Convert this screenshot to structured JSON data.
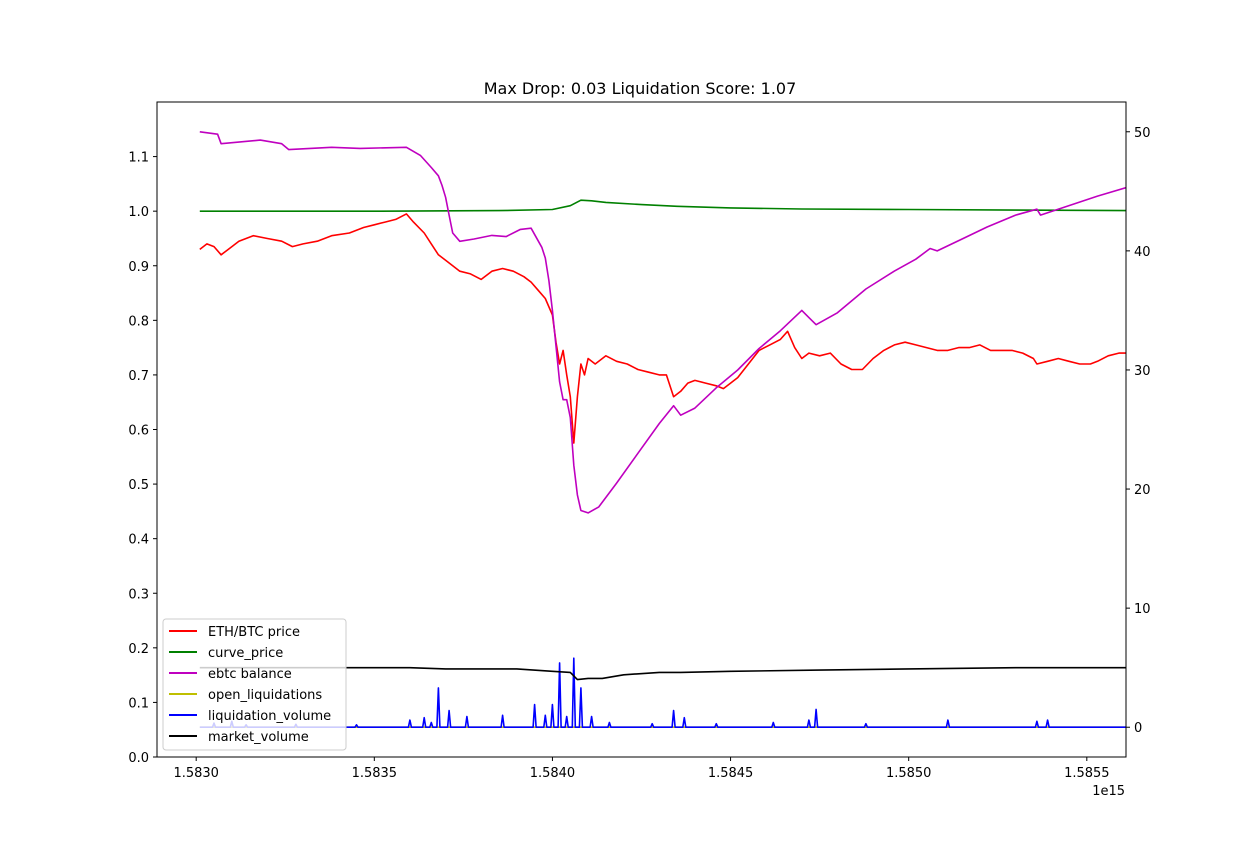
{
  "chart_data": {
    "type": "line",
    "title": "Max Drop: 0.03 Liquidation Score: 1.07",
    "x_offset_label": "1e15",
    "xlim": [
      1.58289,
      1.58561
    ],
    "ylim_left": [
      0.0,
      1.2
    ],
    "ylim_right": [
      -2.5,
      52.5
    ],
    "x_ticks": [
      {
        "value": 1.583,
        "label": "1.5830"
      },
      {
        "value": 1.5835,
        "label": "1.5835"
      },
      {
        "value": 1.584,
        "label": "1.5840"
      },
      {
        "value": 1.5845,
        "label": "1.5845"
      },
      {
        "value": 1.585,
        "label": "1.5850"
      },
      {
        "value": 1.5855,
        "label": "1.5855"
      }
    ],
    "y_ticks_left": [
      {
        "value": 0.0,
        "label": "0.0"
      },
      {
        "value": 0.1,
        "label": "0.1"
      },
      {
        "value": 0.2,
        "label": "0.2"
      },
      {
        "value": 0.3,
        "label": "0.3"
      },
      {
        "value": 0.4,
        "label": "0.4"
      },
      {
        "value": 0.5,
        "label": "0.5"
      },
      {
        "value": 0.6,
        "label": "0.6"
      },
      {
        "value": 0.7,
        "label": "0.7"
      },
      {
        "value": 0.8,
        "label": "0.8"
      },
      {
        "value": 0.9,
        "label": "0.9"
      },
      {
        "value": 1.0,
        "label": "1.0"
      },
      {
        "value": 1.1,
        "label": "1.1"
      }
    ],
    "y_ticks_right": [
      {
        "value": 0,
        "label": "0"
      },
      {
        "value": 10,
        "label": "10"
      },
      {
        "value": 20,
        "label": "20"
      },
      {
        "value": 30,
        "label": "30"
      },
      {
        "value": 40,
        "label": "40"
      },
      {
        "value": 50,
        "label": "50"
      }
    ],
    "legend_position": "lower-left",
    "series": [
      {
        "name": "ETH/BTC price",
        "color": "#ff0000",
        "axis": "left",
        "points": [
          [
            1.58301,
            0.93
          ],
          [
            1.58303,
            0.94
          ],
          [
            1.58305,
            0.935
          ],
          [
            1.58307,
            0.92
          ],
          [
            1.58309,
            0.93
          ],
          [
            1.58312,
            0.945
          ],
          [
            1.58316,
            0.955
          ],
          [
            1.5832,
            0.95
          ],
          [
            1.58324,
            0.945
          ],
          [
            1.58327,
            0.935
          ],
          [
            1.5833,
            0.94
          ],
          [
            1.58334,
            0.945
          ],
          [
            1.58338,
            0.955
          ],
          [
            1.58343,
            0.96
          ],
          [
            1.58347,
            0.97
          ],
          [
            1.5835,
            0.975
          ],
          [
            1.58353,
            0.98
          ],
          [
            1.58356,
            0.985
          ],
          [
            1.58359,
            0.995
          ],
          [
            1.58361,
            0.98
          ],
          [
            1.58364,
            0.96
          ],
          [
            1.58366,
            0.94
          ],
          [
            1.58368,
            0.92
          ],
          [
            1.5837,
            0.91
          ],
          [
            1.58372,
            0.9
          ],
          [
            1.58374,
            0.89
          ],
          [
            1.58377,
            0.885
          ],
          [
            1.5838,
            0.875
          ],
          [
            1.58383,
            0.89
          ],
          [
            1.58386,
            0.895
          ],
          [
            1.58389,
            0.89
          ],
          [
            1.58392,
            0.88
          ],
          [
            1.58394,
            0.87
          ],
          [
            1.58396,
            0.855
          ],
          [
            1.58398,
            0.84
          ],
          [
            1.584,
            0.81
          ],
          [
            1.58401,
            0.76
          ],
          [
            1.58402,
            0.72
          ],
          [
            1.58403,
            0.745
          ],
          [
            1.58404,
            0.7
          ],
          [
            1.58405,
            0.66
          ],
          [
            1.58406,
            0.575
          ],
          [
            1.58407,
            0.66
          ],
          [
            1.58408,
            0.72
          ],
          [
            1.58409,
            0.7
          ],
          [
            1.5841,
            0.73
          ],
          [
            1.58412,
            0.72
          ],
          [
            1.58415,
            0.735
          ],
          [
            1.58418,
            0.725
          ],
          [
            1.58421,
            0.72
          ],
          [
            1.58424,
            0.71
          ],
          [
            1.58427,
            0.705
          ],
          [
            1.5843,
            0.7
          ],
          [
            1.58432,
            0.7
          ],
          [
            1.58434,
            0.66
          ],
          [
            1.58436,
            0.67
          ],
          [
            1.58438,
            0.685
          ],
          [
            1.5844,
            0.69
          ],
          [
            1.58443,
            0.685
          ],
          [
            1.58446,
            0.68
          ],
          [
            1.58448,
            0.675
          ],
          [
            1.5845,
            0.685
          ],
          [
            1.58452,
            0.695
          ],
          [
            1.58455,
            0.72
          ],
          [
            1.58458,
            0.745
          ],
          [
            1.58461,
            0.755
          ],
          [
            1.58464,
            0.765
          ],
          [
            1.58466,
            0.78
          ],
          [
            1.58468,
            0.75
          ],
          [
            1.5847,
            0.73
          ],
          [
            1.58472,
            0.74
          ],
          [
            1.58475,
            0.735
          ],
          [
            1.58478,
            0.74
          ],
          [
            1.58481,
            0.72
          ],
          [
            1.58484,
            0.71
          ],
          [
            1.58487,
            0.71
          ],
          [
            1.5849,
            0.73
          ],
          [
            1.58493,
            0.745
          ],
          [
            1.58496,
            0.755
          ],
          [
            1.58499,
            0.76
          ],
          [
            1.58502,
            0.755
          ],
          [
            1.58505,
            0.75
          ],
          [
            1.58508,
            0.745
          ],
          [
            1.58511,
            0.745
          ],
          [
            1.58514,
            0.75
          ],
          [
            1.58517,
            0.75
          ],
          [
            1.5852,
            0.755
          ],
          [
            1.58523,
            0.745
          ],
          [
            1.58526,
            0.745
          ],
          [
            1.58529,
            0.745
          ],
          [
            1.58532,
            0.74
          ],
          [
            1.58535,
            0.73
          ],
          [
            1.58536,
            0.72
          ],
          [
            1.58539,
            0.725
          ],
          [
            1.58542,
            0.73
          ],
          [
            1.58545,
            0.725
          ],
          [
            1.58548,
            0.72
          ],
          [
            1.58551,
            0.72
          ],
          [
            1.58553,
            0.725
          ],
          [
            1.58556,
            0.735
          ],
          [
            1.58559,
            0.74
          ],
          [
            1.58561,
            0.74
          ]
        ]
      },
      {
        "name": "curve_price",
        "color": "#008000",
        "axis": "left",
        "points": [
          [
            1.58301,
            1.0
          ],
          [
            1.5835,
            1.0
          ],
          [
            1.58385,
            1.001
          ],
          [
            1.584,
            1.003
          ],
          [
            1.58405,
            1.01
          ],
          [
            1.58408,
            1.02
          ],
          [
            1.58411,
            1.019
          ],
          [
            1.58415,
            1.016
          ],
          [
            1.58425,
            1.012
          ],
          [
            1.58435,
            1.009
          ],
          [
            1.5845,
            1.006
          ],
          [
            1.5847,
            1.004
          ],
          [
            1.585,
            1.003
          ],
          [
            1.5853,
            1.002
          ],
          [
            1.58561,
            1.001
          ]
        ]
      },
      {
        "name": "ebtc balance",
        "color": "#bf00bf",
        "axis": "right",
        "points": [
          [
            1.58301,
            50.0
          ],
          [
            1.58306,
            49.8
          ],
          [
            1.58307,
            49.0
          ],
          [
            1.58318,
            49.3
          ],
          [
            1.58324,
            49.0
          ],
          [
            1.58326,
            48.5
          ],
          [
            1.58338,
            48.7
          ],
          [
            1.58346,
            48.6
          ],
          [
            1.58359,
            48.7
          ],
          [
            1.58363,
            48.0
          ],
          [
            1.58366,
            47.0
          ],
          [
            1.58368,
            46.3
          ],
          [
            1.58369,
            45.5
          ],
          [
            1.5837,
            44.5
          ],
          [
            1.58371,
            43.0
          ],
          [
            1.58372,
            41.5
          ],
          [
            1.58374,
            40.8
          ],
          [
            1.58378,
            41.0
          ],
          [
            1.58383,
            41.3
          ],
          [
            1.58387,
            41.2
          ],
          [
            1.58391,
            41.8
          ],
          [
            1.58394,
            41.9
          ],
          [
            1.58397,
            40.3
          ],
          [
            1.58398,
            39.4
          ],
          [
            1.58399,
            37.5
          ],
          [
            1.584,
            35.0
          ],
          [
            1.58401,
            32.0
          ],
          [
            1.58402,
            29.0
          ],
          [
            1.58403,
            27.5
          ],
          [
            1.58404,
            27.5
          ],
          [
            1.58405,
            26.0
          ],
          [
            1.58406,
            22.0
          ],
          [
            1.58407,
            19.5
          ],
          [
            1.58408,
            18.2
          ],
          [
            1.5841,
            18.0
          ],
          [
            1.58413,
            18.5
          ],
          [
            1.58418,
            20.5
          ],
          [
            1.58424,
            23.0
          ],
          [
            1.5843,
            25.5
          ],
          [
            1.58434,
            27.0
          ],
          [
            1.58436,
            26.2
          ],
          [
            1.5844,
            26.8
          ],
          [
            1.58446,
            28.5
          ],
          [
            1.58452,
            30.0
          ],
          [
            1.58458,
            31.8
          ],
          [
            1.58464,
            33.3
          ],
          [
            1.5847,
            35.0
          ],
          [
            1.58472,
            34.4
          ],
          [
            1.58474,
            33.8
          ],
          [
            1.5848,
            34.8
          ],
          [
            1.58488,
            36.8
          ],
          [
            1.58496,
            38.3
          ],
          [
            1.58502,
            39.3
          ],
          [
            1.58506,
            40.2
          ],
          [
            1.58508,
            40.0
          ],
          [
            1.58515,
            41.0
          ],
          [
            1.58522,
            42.0
          ],
          [
            1.5853,
            43.0
          ],
          [
            1.58536,
            43.5
          ],
          [
            1.58537,
            43.0
          ],
          [
            1.58545,
            43.8
          ],
          [
            1.58553,
            44.6
          ],
          [
            1.58561,
            45.3
          ]
        ]
      },
      {
        "name": "open_liquidations",
        "color": "#bfbf00",
        "axis": "right",
        "points": [
          [
            1.58301,
            0
          ],
          [
            1.58561,
            0
          ]
        ]
      },
      {
        "name": "liquidation_volume",
        "color": "#0000ff",
        "axis": "right",
        "baseline": 0.0,
        "spikes": [
          [
            1.58305,
            0.35
          ],
          [
            1.5831,
            0.5
          ],
          [
            1.58314,
            0.2
          ],
          [
            1.58328,
            0.25
          ],
          [
            1.58345,
            0.2
          ],
          [
            1.5836,
            0.6
          ],
          [
            1.58364,
            0.8
          ],
          [
            1.58366,
            0.4
          ],
          [
            1.58368,
            3.3
          ],
          [
            1.58371,
            1.4
          ],
          [
            1.58376,
            0.9
          ],
          [
            1.58386,
            1.0
          ],
          [
            1.58395,
            1.9
          ],
          [
            1.58398,
            1.0
          ],
          [
            1.584,
            1.9
          ],
          [
            1.58402,
            5.4
          ],
          [
            1.58404,
            0.9
          ],
          [
            1.58406,
            5.8
          ],
          [
            1.58408,
            3.3
          ],
          [
            1.58411,
            0.9
          ],
          [
            1.58416,
            0.4
          ],
          [
            1.58428,
            0.3
          ],
          [
            1.58434,
            1.4
          ],
          [
            1.58437,
            0.8
          ],
          [
            1.58446,
            0.3
          ],
          [
            1.58462,
            0.4
          ],
          [
            1.58472,
            0.6
          ],
          [
            1.58474,
            1.5
          ],
          [
            1.58488,
            0.3
          ],
          [
            1.58511,
            0.6
          ],
          [
            1.58536,
            0.5
          ],
          [
            1.58539,
            0.6
          ]
        ]
      },
      {
        "name": "market_volume",
        "color": "#000000",
        "axis": "right",
        "points": [
          [
            1.58301,
            5.0
          ],
          [
            1.5836,
            5.0
          ],
          [
            1.5837,
            4.9
          ],
          [
            1.5839,
            4.9
          ],
          [
            1.584,
            4.7
          ],
          [
            1.58405,
            4.6
          ],
          [
            1.58407,
            4.0
          ],
          [
            1.5841,
            4.1
          ],
          [
            1.58414,
            4.1
          ],
          [
            1.5842,
            4.4
          ],
          [
            1.5843,
            4.6
          ],
          [
            1.58436,
            4.6
          ],
          [
            1.5845,
            4.7
          ],
          [
            1.58475,
            4.8
          ],
          [
            1.585,
            4.9
          ],
          [
            1.5853,
            5.0
          ],
          [
            1.58561,
            5.0
          ]
        ]
      }
    ]
  }
}
